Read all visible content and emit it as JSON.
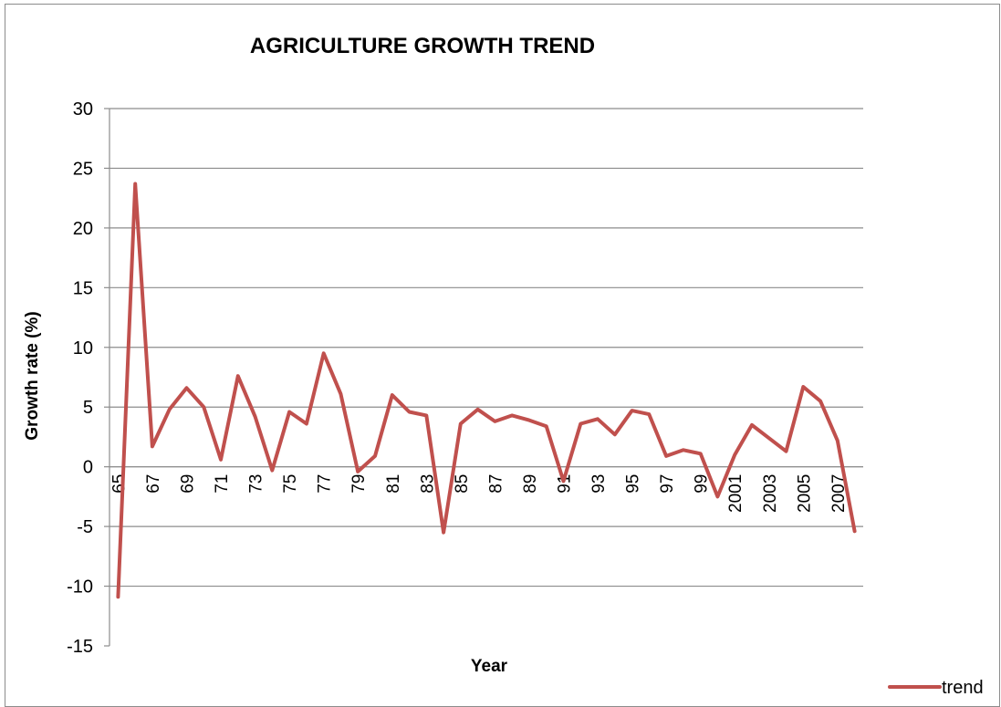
{
  "chart_data": {
    "type": "line",
    "title": "AGRICULTURE GROWTH TREND",
    "xlabel": "Year",
    "ylabel": "Growth rate (%)",
    "ylim": [
      -15,
      30
    ],
    "yticks": [
      -15,
      -10,
      -5,
      0,
      5,
      10,
      15,
      20,
      25,
      30
    ],
    "grid": true,
    "legend": "bottom-right",
    "categories": [
      "65",
      "66",
      "67",
      "68",
      "69",
      "70",
      "71",
      "72",
      "73",
      "74",
      "75",
      "76",
      "77",
      "78",
      "79",
      "80",
      "81",
      "82",
      "83",
      "84",
      "85",
      "86",
      "87",
      "88",
      "89",
      "90",
      "91",
      "92",
      "93",
      "94",
      "95",
      "96",
      "97",
      "98",
      "99",
      "2000",
      "2001",
      "2002",
      "2003",
      "2004",
      "2005",
      "2006",
      "2007",
      "2008"
    ],
    "tick_labels": [
      "65",
      "",
      "67",
      "",
      "69",
      "",
      "71",
      "",
      "73",
      "",
      "75",
      "",
      "77",
      "",
      "79",
      "",
      "81",
      "",
      "83",
      "",
      "85",
      "",
      "87",
      "",
      "89",
      "",
      "91",
      "",
      "93",
      "",
      "95",
      "",
      "97",
      "",
      "99",
      "",
      "2001",
      "",
      "2003",
      "",
      "2005",
      "",
      "2007",
      ""
    ],
    "series": [
      {
        "name": "trend",
        "color": "#c0504d",
        "values": [
          -10.9,
          23.7,
          1.7,
          4.8,
          6.6,
          5.0,
          0.6,
          7.6,
          4.2,
          -0.3,
          4.6,
          3.6,
          9.5,
          6.1,
          -0.4,
          0.9,
          6.0,
          4.6,
          4.3,
          -5.5,
          3.6,
          4.8,
          3.8,
          4.3,
          3.9,
          3.4,
          -1.2,
          3.6,
          4.0,
          2.7,
          4.7,
          4.4,
          0.9,
          1.4,
          1.1,
          -2.5,
          1.0,
          3.5,
          2.4,
          1.3,
          6.7,
          5.5,
          2.2,
          -5.4
        ]
      }
    ]
  }
}
